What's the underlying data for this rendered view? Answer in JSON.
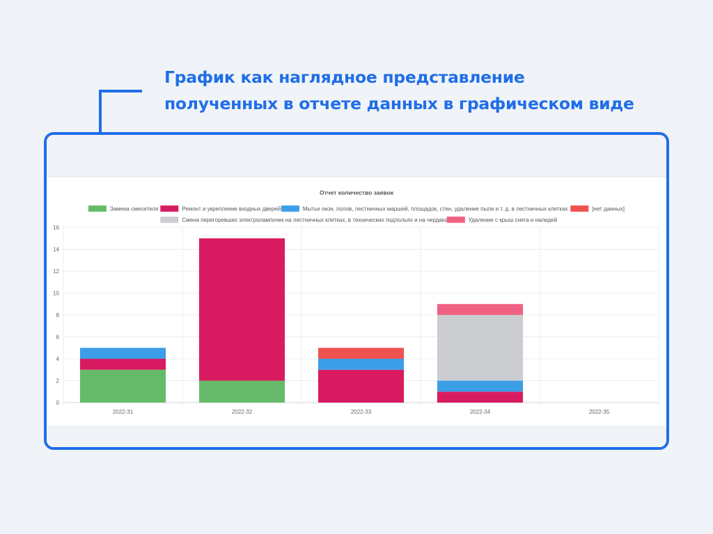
{
  "headline": {
    "line1": "График как наглядное представление",
    "line2": "полученных в отчете данных в графическом виде"
  },
  "colors": {
    "accent": "#1f6ee8"
  },
  "chart_data": {
    "type": "bar",
    "stacked": true,
    "title": "Отчет количество заявок",
    "xlabel": "",
    "ylabel": "",
    "categories": [
      "2022-31",
      "2022-32",
      "2022-33",
      "2022-34",
      "2022-35"
    ],
    "ylim": [
      0,
      16
    ],
    "yticks": [
      0,
      2,
      4,
      6,
      8,
      10,
      12,
      14,
      16
    ],
    "grid": true,
    "legend_position": "top",
    "series": [
      {
        "name": "Замена смесителя",
        "color": "#66bb6a",
        "values": [
          3,
          2,
          0,
          0,
          0
        ]
      },
      {
        "name": "Ремонт и укрепление входных дверей",
        "color": "#d81b60",
        "values": [
          1,
          13,
          3,
          1,
          0
        ]
      },
      {
        "name": "Мытье окон, полов, лестничных маршей, площадок, стен, удаление пыли и т. д. в лестничных клетках",
        "color": "#3d9ee8",
        "values": [
          1,
          0,
          1,
          1,
          0
        ]
      },
      {
        "name": "[нет данных]",
        "color": "#ef5350",
        "values": [
          0,
          0,
          1,
          0,
          0
        ]
      },
      {
        "name": "Смена перегоревших электролампочек на лестничных клетках, в технических подпольях и на чердаках",
        "color": "#cbcdd1",
        "values": [
          0,
          0,
          0,
          6,
          0
        ]
      },
      {
        "name": "Удаление с крыш снега и наледей",
        "color": "#f06283",
        "values": [
          0,
          0,
          0,
          1,
          0
        ]
      }
    ]
  }
}
